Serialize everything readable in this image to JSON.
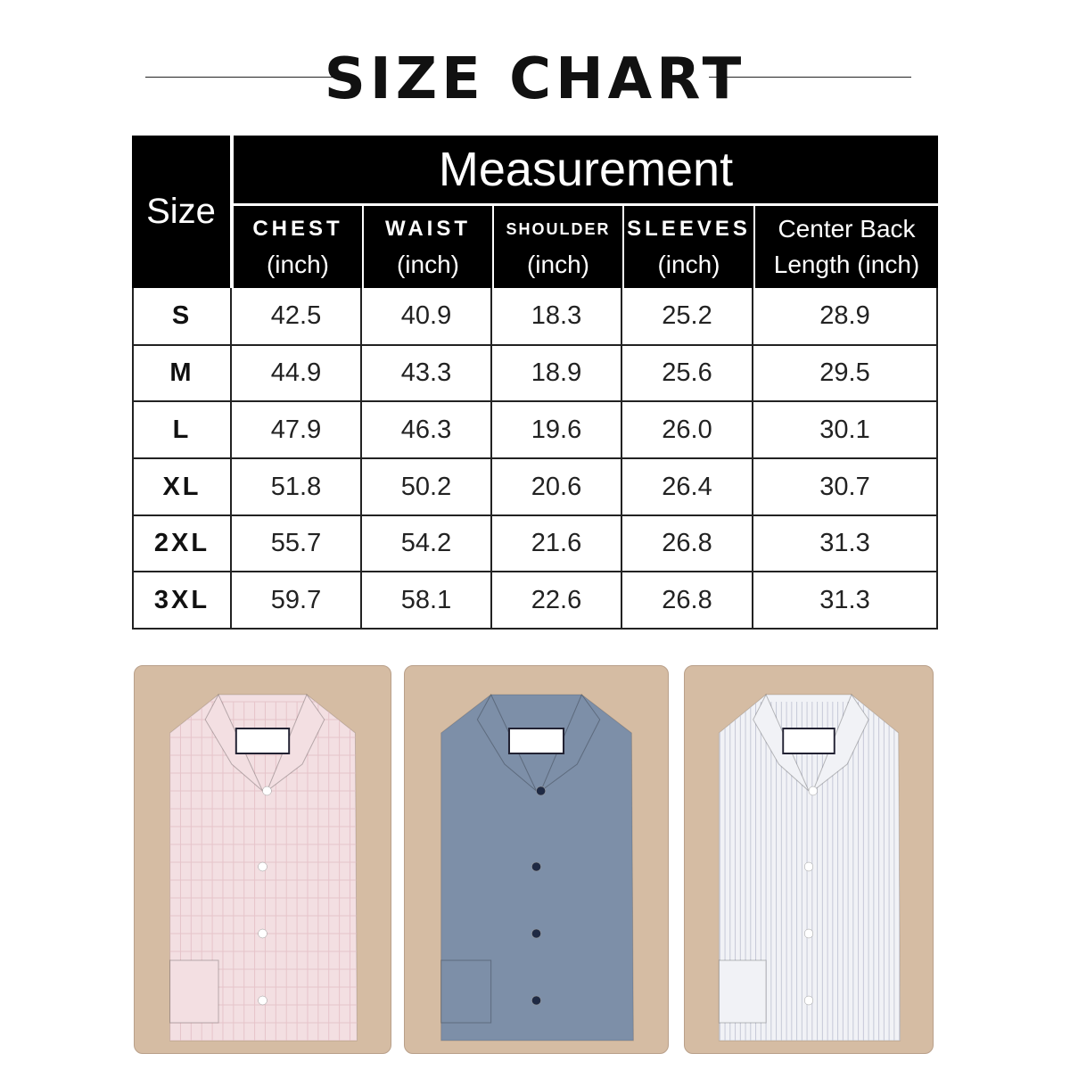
{
  "title": "SIZE CHART",
  "table": {
    "size_header": "Size",
    "group_header": "Measurement",
    "columns": [
      {
        "name": "CHEST",
        "unit": "(inch)"
      },
      {
        "name": "WAIST",
        "unit": "(inch)"
      },
      {
        "name": "SHOULDER",
        "unit": "(inch)"
      },
      {
        "name": "SLEEVES",
        "unit": "(inch)"
      },
      {
        "name": "Center Back",
        "unit": "Length (inch)"
      }
    ],
    "rows": [
      {
        "size": "S",
        "values": [
          "42.5",
          "40.9",
          "18.3",
          "25.2",
          "28.9"
        ]
      },
      {
        "size": "M",
        "values": [
          "44.9",
          "43.3",
          "18.9",
          "25.6",
          "29.5"
        ]
      },
      {
        "size": "L",
        "values": [
          "47.9",
          "46.3",
          "19.6",
          "26.0",
          "30.1"
        ]
      },
      {
        "size": "XL",
        "values": [
          "51.8",
          "50.2",
          "20.6",
          "26.4",
          "30.7"
        ]
      },
      {
        "size": "2XL",
        "values": [
          "55.7",
          "54.2",
          "21.6",
          "26.8",
          "31.3"
        ]
      },
      {
        "size": "3XL",
        "values": [
          "59.7",
          "58.1",
          "22.6",
          "26.8",
          "31.3"
        ]
      }
    ]
  },
  "shirts": [
    {
      "name": "pink-check-shirt",
      "color": "#f3dfe2",
      "button": "#ffffff",
      "pattern": "check"
    },
    {
      "name": "blue-shirt",
      "color": "#7d8fa8",
      "button": "#1f2a44",
      "pattern": "plain"
    },
    {
      "name": "white-stripe-shirt",
      "color": "#f1f2f6",
      "button": "#ffffff",
      "pattern": "stripe"
    }
  ],
  "colors": {
    "header_bg": "#000000",
    "panel_bg": "#d5bca3"
  }
}
